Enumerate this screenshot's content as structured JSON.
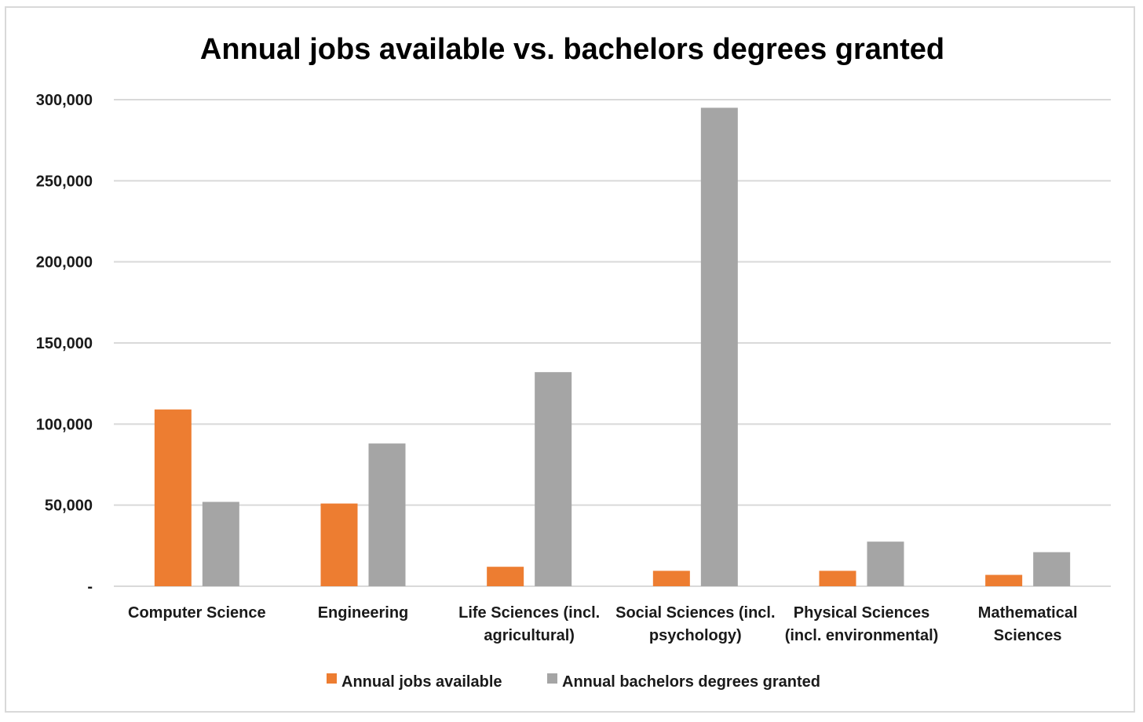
{
  "chart_data": {
    "type": "bar",
    "title": "Annual jobs available vs. bachelors degrees granted",
    "xlabel": "",
    "ylabel": "",
    "categories": [
      [
        "Computer Science"
      ],
      [
        "Engineering"
      ],
      [
        "Life Sciences (incl.",
        "agricultural)"
      ],
      [
        "Social Sciences (incl.",
        "psychology)"
      ],
      [
        "Physical Sciences",
        "(incl. environmental)"
      ],
      [
        "Mathematical",
        "Sciences"
      ]
    ],
    "series": [
      {
        "name": "Annual jobs available",
        "color": "#ed7d31",
        "values": [
          109000,
          51000,
          12000,
          9500,
          9500,
          7000
        ]
      },
      {
        "name": "Annual bachelors degrees granted",
        "color": "#a5a5a5",
        "values": [
          52000,
          88000,
          132000,
          295000,
          27500,
          21000
        ]
      }
    ],
    "ylim": [
      0,
      300000
    ],
    "yticks": [
      {
        "value": 0,
        "label": "-"
      },
      {
        "value": 50000,
        "label": "50,000"
      },
      {
        "value": 100000,
        "label": "100,000"
      },
      {
        "value": 150000,
        "label": "150,000"
      },
      {
        "value": 200000,
        "label": "200,000"
      },
      {
        "value": 250000,
        "label": "250,000"
      },
      {
        "value": 300000,
        "label": "300,000"
      }
    ],
    "grid": true,
    "legend_position": "bottom"
  }
}
